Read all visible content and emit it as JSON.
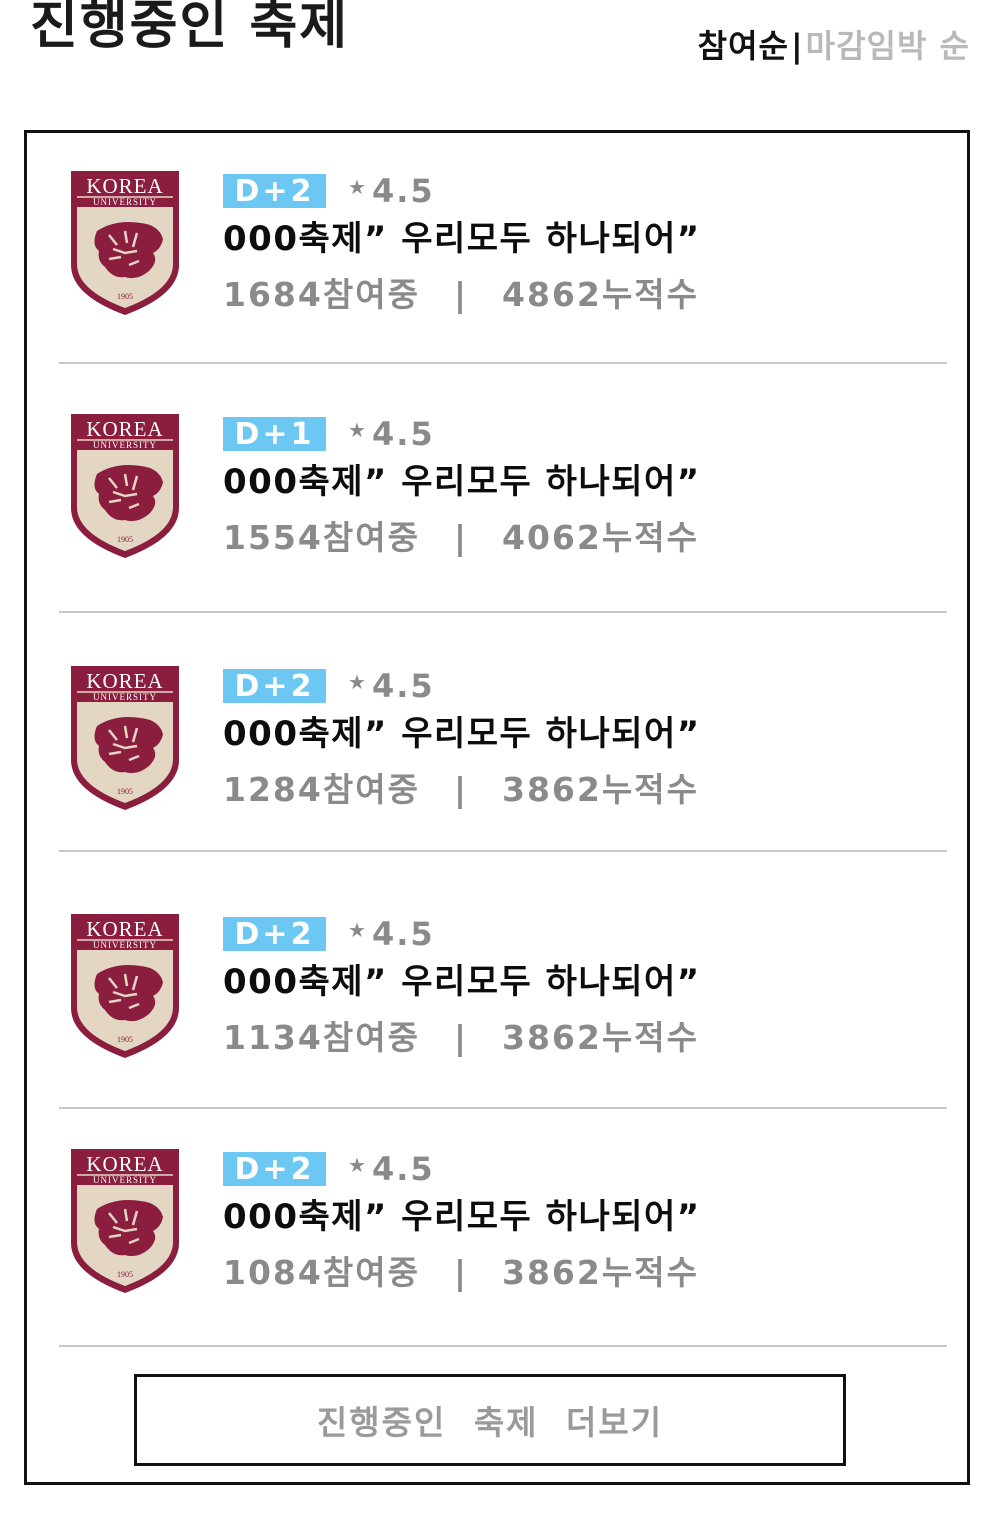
{
  "page_title": "진행중인 축제",
  "sort": {
    "active_label": "참여순",
    "separator": "|",
    "inactive_label": "마감임박 순"
  },
  "festivals": [
    {
      "logo": {
        "icon": "korea-university-crest-icon",
        "top_text": "KOREA",
        "sub_text": "UNIVERSITY",
        "year": "1905"
      },
      "dday": "D+2",
      "star_icon": "star-icon",
      "rating": "4.5",
      "name": "000축제” 우리모두 하나되어”",
      "participants": "1684참여중",
      "separator": "|",
      "cumulative": "4862누적수"
    },
    {
      "logo": {
        "icon": "korea-university-crest-icon",
        "top_text": "KOREA",
        "sub_text": "UNIVERSITY",
        "year": "1905"
      },
      "dday": "D+1",
      "star_icon": "star-icon",
      "rating": "4.5",
      "name": "000축제” 우리모두 하나되어”",
      "participants": "1554참여중",
      "separator": "|",
      "cumulative": "4062누적수"
    },
    {
      "logo": {
        "icon": "korea-university-crest-icon",
        "top_text": "KOREA",
        "sub_text": "UNIVERSITY",
        "year": "1905"
      },
      "dday": "D+2",
      "star_icon": "star-icon",
      "rating": "4.5",
      "name": "000축제” 우리모두 하나되어”",
      "participants": "1284참여중",
      "separator": "|",
      "cumulative": "3862누적수"
    },
    {
      "logo": {
        "icon": "korea-university-crest-icon",
        "top_text": "KOREA",
        "sub_text": "UNIVERSITY",
        "year": "1905"
      },
      "dday": "D+2",
      "star_icon": "star-icon",
      "rating": "4.5",
      "name": "000축제” 우리모두 하나되어”",
      "participants": "1134참여중",
      "separator": "|",
      "cumulative": "3862누적수"
    },
    {
      "logo": {
        "icon": "korea-university-crest-icon",
        "top_text": "KOREA",
        "sub_text": "UNIVERSITY",
        "year": "1905"
      },
      "dday": "D+2",
      "star_icon": "star-icon",
      "rating": "4.5",
      "name": "000축제” 우리모두 하나되어”",
      "participants": "1084참여중",
      "separator": "|",
      "cumulative": "3862누적수"
    }
  ],
  "more_button_label": "진행중인 축제 더보기",
  "colors": {
    "badge": "#6cc7f2",
    "crest_crimson": "#8b1e3f",
    "crest_beige": "#e3d7c4",
    "muted_text": "#8a8a8a",
    "inactive_sort": "#b9b9b9"
  }
}
